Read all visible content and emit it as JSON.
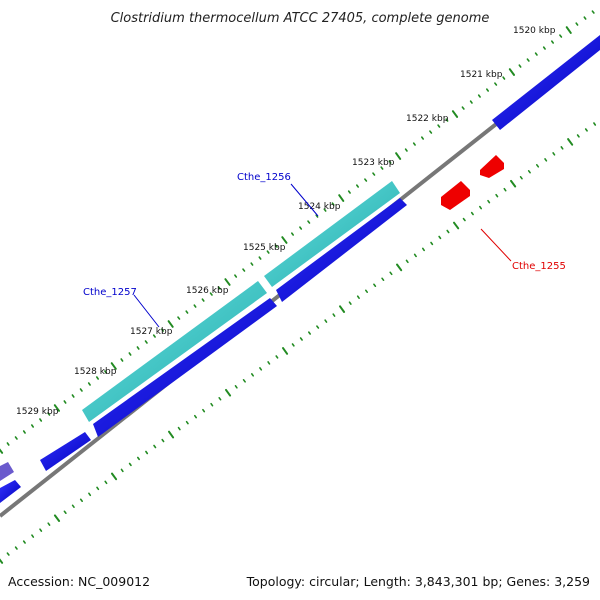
{
  "title": "Clostridium thermocellum ATCC 27405, complete genome",
  "footer": {
    "accession": "Accession: NC_009012",
    "stats": "Topology: circular; Length: 3,843,301 bp; Genes: 3,259"
  },
  "ticks": [
    "1520 kbp",
    "1521 kbp",
    "1522 kbp",
    "1523 kbp",
    "1524 kbp",
    "1525 kbp",
    "1526 kbp",
    "1527 kbp",
    "1528 kbp",
    "1529 kbp"
  ],
  "genes": [
    {
      "name": "Cthe_1256",
      "color": "#0000cc"
    },
    {
      "name": "Cthe_1257",
      "color": "#0000cc"
    },
    {
      "name": "Cthe_1255",
      "color": "#e00000"
    }
  ],
  "colors": {
    "forward_strand": "#0000dd",
    "highlight": "#33cccc",
    "reverse_strand": "#ee0000",
    "backbone": "#808080",
    "tick_marks": "#228b22"
  }
}
